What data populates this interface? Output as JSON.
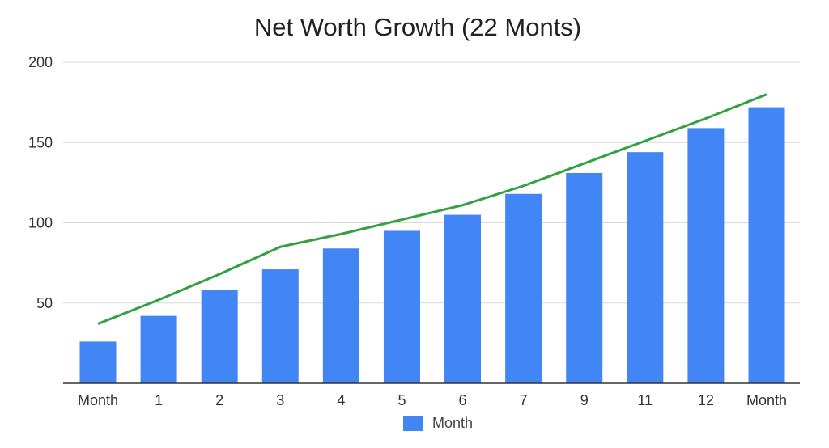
{
  "chart_data": {
    "type": "bar",
    "title": "Net Worth Growth (22 Monts)",
    "categories": [
      "Month",
      "1",
      "2",
      "3",
      "4",
      "5",
      "6",
      "7",
      "9",
      "11",
      "12",
      "Month"
    ],
    "series": [
      {
        "name": "Month",
        "type": "bar",
        "color": "#4285f4",
        "values": [
          26,
          42,
          58,
          71,
          84,
          95,
          105,
          118,
          131,
          144,
          159,
          172
        ]
      },
      {
        "type": "line",
        "color": "#34a043",
        "values": [
          37,
          52,
          68,
          85,
          93,
          102,
          111,
          123,
          137,
          151,
          165,
          180
        ]
      }
    ],
    "ylim": [
      0,
      200
    ],
    "y_ticks": [
      50,
      100,
      150,
      200
    ],
    "grid": true,
    "legend_position": "bottom"
  }
}
